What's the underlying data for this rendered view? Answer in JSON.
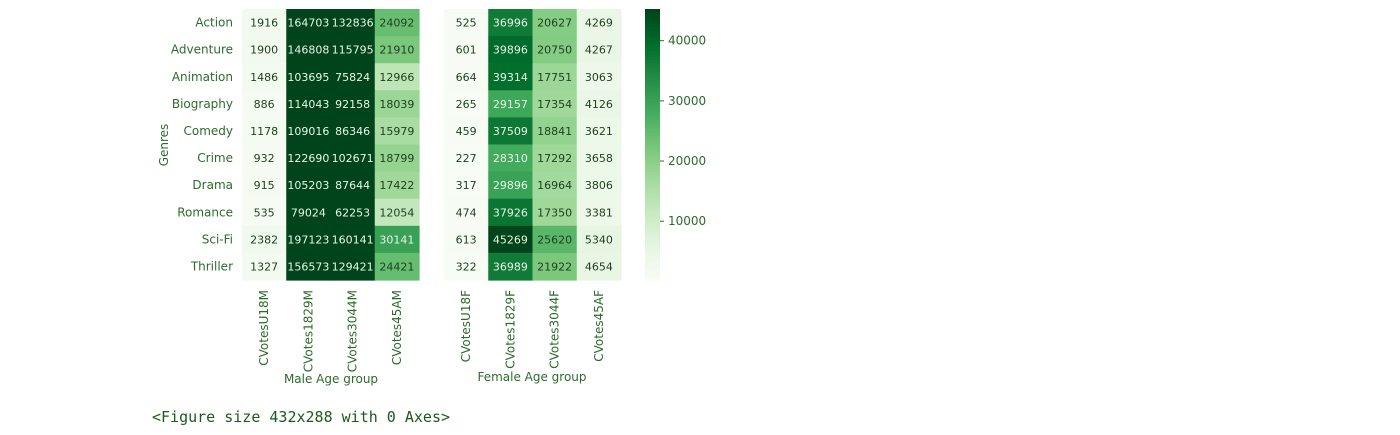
{
  "caption": "<Figure size 432x288 with 0 Axes>",
  "chart_data": [
    {
      "type": "heatmap",
      "ylabel": "Genres",
      "xlabel": "Male Age group",
      "rows": [
        "Action",
        "Adventure",
        "Animation",
        "Biography",
        "Comedy",
        "Crime",
        "Drama",
        "Romance",
        "Sci-Fi",
        "Thriller"
      ],
      "columns": [
        "CVotesU18M",
        "CVotes1829M",
        "CVotes3044M",
        "CVotes45AM"
      ],
      "values": [
        [
          1916,
          164703,
          132836,
          24092
        ],
        [
          1900,
          146808,
          115795,
          21910
        ],
        [
          1486,
          103695,
          75824,
          12966
        ],
        [
          886,
          114043,
          92158,
          18039
        ],
        [
          1178,
          109016,
          86346,
          15979
        ],
        [
          932,
          122690,
          102671,
          18799
        ],
        [
          915,
          105203,
          87644,
          17422
        ],
        [
          535,
          79024,
          62253,
          12054
        ],
        [
          2382,
          197123,
          160141,
          30141
        ],
        [
          1327,
          156573,
          129421,
          24421
        ]
      ],
      "vmax": 45000,
      "colormap": "Greens"
    },
    {
      "type": "heatmap",
      "xlabel": "Female Age group",
      "rows": [
        "Action",
        "Adventure",
        "Animation",
        "Biography",
        "Comedy",
        "Crime",
        "Drama",
        "Romance",
        "Sci-Fi",
        "Thriller"
      ],
      "columns": [
        "CVotesU18F",
        "CVotes1829F",
        "CVotes3044F",
        "CVotes45AF"
      ],
      "values": [
        [
          525,
          36996,
          20627,
          4269
        ],
        [
          601,
          39896,
          20750,
          4267
        ],
        [
          664,
          39314,
          17751,
          3063
        ],
        [
          265,
          29157,
          17354,
          4126
        ],
        [
          459,
          37509,
          18841,
          3621
        ],
        [
          227,
          28310,
          17292,
          3658
        ],
        [
          317,
          29896,
          16964,
          3806
        ],
        [
          474,
          37926,
          17350,
          3381
        ],
        [
          613,
          45269,
          25620,
          5340
        ],
        [
          322,
          36989,
          21922,
          4654
        ]
      ],
      "vmin": 227,
      "vmax": 45269,
      "colormap": "Greens"
    }
  ],
  "colorbar": {
    "ticks": [
      10000,
      20000,
      30000,
      40000
    ],
    "min": 227,
    "max": 45269
  }
}
